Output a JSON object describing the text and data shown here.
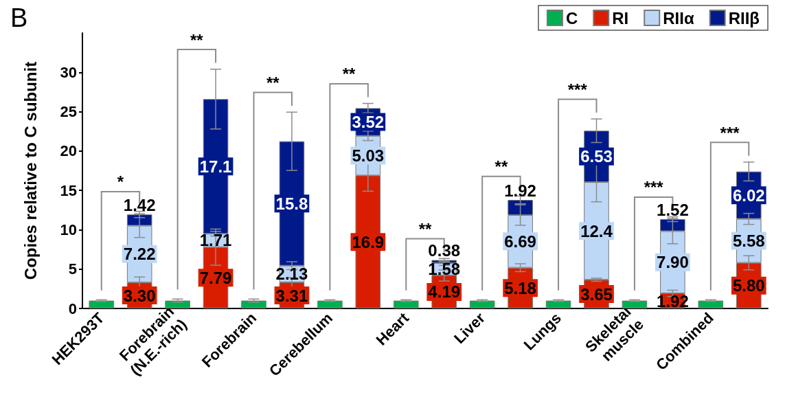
{
  "chart_data": {
    "type": "bar",
    "title": "B",
    "ylabel": "Copies relative to C subunit",
    "categories": [
      "HEK293T",
      null,
      "Forebrain\n(N.E.-rich)",
      null,
      "Forebrain",
      null,
      "Cerebellum",
      null,
      "Heart",
      null,
      "Liver",
      null,
      "Lungs",
      null,
      "Skeletal\nmuscle",
      null,
      "Combined",
      null
    ],
    "stacked": true,
    "series": [
      {
        "name": "C",
        "color": "#00b050",
        "values": [
          1,
          null,
          1,
          null,
          1,
          null,
          1,
          null,
          1,
          null,
          1,
          null,
          1,
          null,
          1,
          null,
          1,
          null
        ],
        "errors": [
          0.1,
          null,
          0.2,
          null,
          0.2,
          null,
          0.1,
          null,
          0.1,
          null,
          0.1,
          null,
          0.1,
          null,
          0.1,
          null,
          0.1,
          null
        ]
      },
      {
        "name": "RI",
        "color": "#d91e00",
        "values": [
          null,
          3.3,
          null,
          7.79,
          null,
          3.31,
          null,
          16.9,
          null,
          4.19,
          null,
          5.18,
          null,
          3.65,
          null,
          1.92,
          null,
          5.8
        ],
        "errors": [
          null,
          0.7,
          null,
          2.3,
          null,
          0.6,
          null,
          2.0,
          null,
          0.7,
          null,
          0.5,
          null,
          0.2,
          null,
          0.4,
          null,
          0.9
        ],
        "value_labels": [
          null,
          "3.30",
          null,
          "7.79",
          null,
          "3.31",
          null,
          "16.9",
          null,
          "4.19",
          null,
          "5.18",
          null,
          "3.65",
          null,
          "1.92",
          null,
          "5.80"
        ]
      },
      {
        "name": "RIIα",
        "color": "#bdd7f7",
        "values": [
          null,
          7.22,
          null,
          1.71,
          null,
          2.13,
          null,
          5.03,
          null,
          1.58,
          null,
          6.69,
          null,
          12.4,
          null,
          7.9,
          null,
          5.58
        ],
        "errors": [
          null,
          1.5,
          null,
          0.3,
          null,
          0.5,
          null,
          0.6,
          null,
          0.3,
          null,
          1.3,
          null,
          2.5,
          null,
          1.6,
          null,
          0.7
        ],
        "value_labels": [
          null,
          "7.22",
          null,
          "1.71",
          null,
          "2.13",
          null,
          "5.03",
          null,
          "1.58",
          null,
          "6.69",
          null,
          "12.4",
          null,
          "7.90",
          null,
          "5.58"
        ]
      },
      {
        "name": "RIIβ",
        "color": "#001a8c",
        "values": [
          null,
          1.42,
          null,
          17.1,
          null,
          15.8,
          null,
          3.52,
          null,
          0.38,
          null,
          1.92,
          null,
          6.53,
          null,
          1.52,
          null,
          6.02
        ],
        "errors": [
          null,
          0.4,
          null,
          3.8,
          null,
          3.7,
          null,
          0.6,
          null,
          0.2,
          null,
          0.5,
          null,
          1.5,
          null,
          0.3,
          null,
          1.2
        ],
        "value_labels": [
          null,
          "1.42",
          null,
          "17.1",
          null,
          "15.8",
          null,
          "3.52",
          null,
          "0.38",
          null,
          "1.92",
          null,
          "6.53",
          null,
          "1.52",
          null,
          "6.02"
        ]
      }
    ],
    "ylim": [
      0,
      35
    ],
    "yticks": [
      0,
      5,
      10,
      15,
      20,
      25,
      30
    ],
    "grid": false,
    "legend": "top right",
    "annotations": [
      "*",
      "**",
      "**",
      "**",
      "**",
      "**",
      "***",
      "***",
      "***"
    ]
  }
}
